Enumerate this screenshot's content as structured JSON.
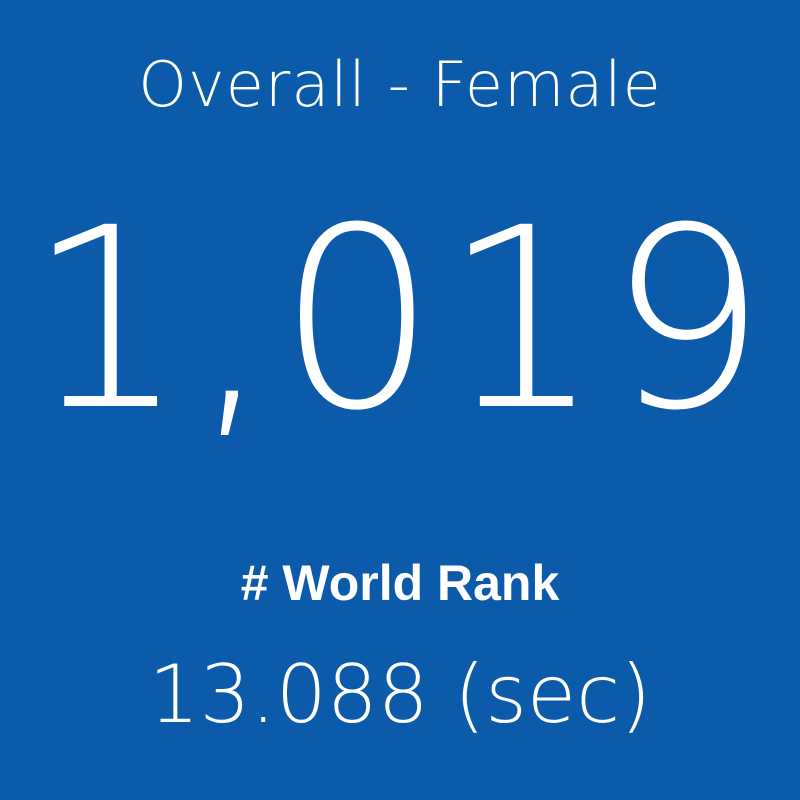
{
  "tile": {
    "background_color": "#0c5baa",
    "text_color": "#ffffff",
    "category": "Overall - Female",
    "rank_value": "1,019",
    "rank_label": "# World Rank",
    "time": "13.088 (sec)"
  }
}
